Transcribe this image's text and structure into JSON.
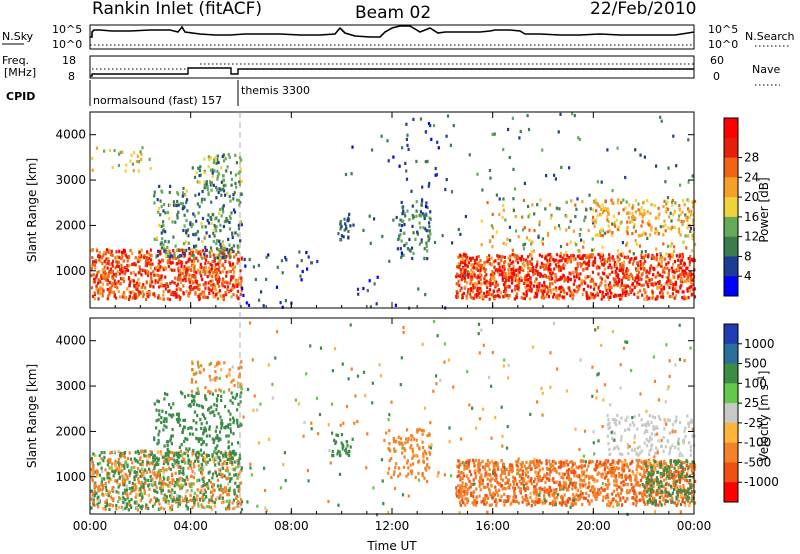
{
  "header": {
    "station": "Rankin Inlet (fitACF)",
    "beam": "Beam 02",
    "date": "22/Feb/2010"
  },
  "strip_panels": {
    "noise": {
      "left_label": "N.Sky",
      "right_label": "N.Search",
      "left_ticks": [
        "10^5",
        "10^0"
      ],
      "right_ticks": [
        "10^5",
        "10^0"
      ]
    },
    "freq": {
      "left_label_line1": "Freq.",
      "left_label_line2": "[MHz]",
      "right_label": "Nave",
      "left_ticks": [
        "18",
        "8"
      ],
      "right_ticks": [
        "60",
        "0"
      ]
    },
    "cpid": {
      "label": "CPID",
      "programs": [
        "normalsound (fast) 157",
        "themis 3300"
      ]
    }
  },
  "colors": {
    "power_scale": [
      "#0000ff",
      "#1e3c96",
      "#3c7a50",
      "#64aa5a",
      "#f0d23c",
      "#f5a028",
      "#f06414",
      "#e61e0a",
      "#ff0000"
    ],
    "velocity_scale": [
      "#1e3cb4",
      "#2a6e9a",
      "#3c8c46",
      "#64c84a",
      "#c8c8c8",
      "#ffb43c",
      "#f58228",
      "#f05014",
      "#ff0000"
    ]
  },
  "chart_data": [
    {
      "type": "heatmap",
      "panel": "power",
      "ylabel": "Slant Range [km]",
      "xlabel": "",
      "x_ticks": [
        "00:00",
        "04:00",
        "08:00",
        "12:00",
        "16:00",
        "20:00",
        "00:00"
      ],
      "y_ticks": [
        "1000",
        "2000",
        "3000",
        "4000"
      ],
      "xlim_hours": [
        0,
        24
      ],
      "ylim_km": [
        180,
        4500
      ],
      "colorbar_label": "Power [dB]",
      "colorbar_ticks": [
        "4",
        "8",
        "12",
        "16",
        "20",
        "24",
        "28"
      ],
      "colorbar_range": [
        0,
        30
      ],
      "scatter_regions": [
        {
          "t": [
            0.0,
            6.0
          ],
          "r": [
            400,
            1500
          ],
          "v": [
            18,
            28
          ],
          "d": 0.75
        },
        {
          "t": [
            2.5,
            6.0
          ],
          "r": [
            1300,
            2900
          ],
          "v": [
            4,
            14
          ],
          "d": 0.3
        },
        {
          "t": [
            4.0,
            6.0
          ],
          "r": [
            2900,
            3600
          ],
          "v": [
            6,
            16
          ],
          "d": 0.35
        },
        {
          "t": [
            0.0,
            2.5
          ],
          "r": [
            3200,
            3800
          ],
          "v": [
            10,
            20
          ],
          "d": 0.12
        },
        {
          "t": [
            6.0,
            9.0
          ],
          "r": [
            200,
            1500
          ],
          "v": [
            2,
            8
          ],
          "d": 0.06
        },
        {
          "t": [
            9.8,
            10.5
          ],
          "r": [
            1700,
            2200
          ],
          "v": [
            4,
            10
          ],
          "d": 0.4
        },
        {
          "t": [
            12.2,
            13.5
          ],
          "r": [
            1300,
            2600
          ],
          "v": [
            4,
            12
          ],
          "d": 0.3
        },
        {
          "t": [
            10.0,
            15.0
          ],
          "r": [
            200,
            4500
          ],
          "v": [
            2,
            10
          ],
          "d": 0.02
        },
        {
          "t": [
            14.5,
            24.0
          ],
          "r": [
            400,
            1400
          ],
          "v": [
            18,
            30
          ],
          "d": 0.8
        },
        {
          "t": [
            15.5,
            24.0
          ],
          "r": [
            1400,
            2600
          ],
          "v": [
            6,
            22
          ],
          "d": 0.12
        },
        {
          "t": [
            20.0,
            24.0
          ],
          "r": [
            1800,
            2600
          ],
          "v": [
            14,
            22
          ],
          "d": 0.3
        },
        {
          "t": [
            12.0,
            24.0
          ],
          "r": [
            2600,
            4500
          ],
          "v": [
            4,
            12
          ],
          "d": 0.02
        }
      ]
    },
    {
      "type": "heatmap",
      "panel": "velocity",
      "ylabel": "Slant Range [km]",
      "xlabel": "Time UT",
      "x_ticks": [
        "00:00",
        "04:00",
        "08:00",
        "12:00",
        "16:00",
        "20:00",
        "00:00"
      ],
      "y_ticks": [
        "1000",
        "2000",
        "3000",
        "4000"
      ],
      "xlim_hours": [
        0,
        24
      ],
      "ylim_km": [
        180,
        4500
      ],
      "colorbar_label": "Velocity [m s^-1]",
      "colorbar_ticks": [
        "1000",
        "500",
        "100",
        "25",
        "-25",
        "-100",
        "-500",
        "-1000"
      ],
      "colorbar_range": [
        -1000,
        1000
      ],
      "scatter_regions": [
        {
          "t": [
            0.0,
            6.0
          ],
          "r": [
            300,
            1600
          ],
          "v": [
            -500,
            500
          ],
          "d": 0.7
        },
        {
          "t": [
            2.5,
            6.0
          ],
          "r": [
            1300,
            2900
          ],
          "v": [
            100,
            500
          ],
          "d": 0.3
        },
        {
          "t": [
            4.0,
            6.0
          ],
          "r": [
            2900,
            3600
          ],
          "v": [
            -500,
            100
          ],
          "d": 0.3
        },
        {
          "t": [
            9.5,
            10.5
          ],
          "r": [
            1500,
            2000
          ],
          "v": [
            100,
            300
          ],
          "d": 0.4
        },
        {
          "t": [
            11.8,
            13.5
          ],
          "r": [
            1000,
            2100
          ],
          "v": [
            -500,
            -150
          ],
          "d": 0.35
        },
        {
          "t": [
            14.5,
            24.0
          ],
          "r": [
            400,
            1400
          ],
          "v": [
            -700,
            -80
          ],
          "d": 0.8
        },
        {
          "t": [
            20.5,
            24.0
          ],
          "r": [
            1500,
            2400
          ],
          "v": [
            -20,
            20
          ],
          "d": 0.3
        },
        {
          "t": [
            22.0,
            24.0
          ],
          "r": [
            400,
            1400
          ],
          "v": [
            100,
            500
          ],
          "d": 0.4
        },
        {
          "t": [
            6.0,
            24.0
          ],
          "r": [
            200,
            4500
          ],
          "v": [
            -300,
            300
          ],
          "d": 0.02
        }
      ]
    }
  ]
}
